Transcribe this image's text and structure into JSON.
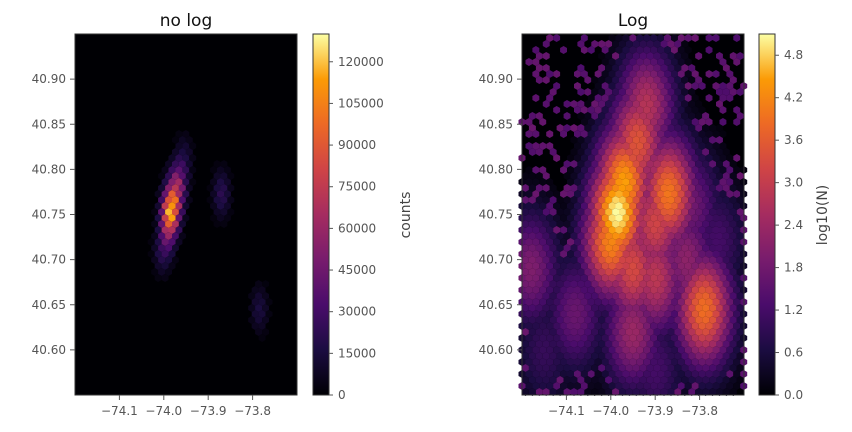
{
  "chart_data": [
    {
      "type": "heatmap",
      "subtype": "hexbin",
      "title": "no log",
      "xlim": [
        -74.2,
        -73.7
      ],
      "ylim": [
        40.55,
        40.95
      ],
      "xticks": [
        -74.1,
        -74.0,
        -73.9,
        -73.8
      ],
      "xtick_labels": [
        "−74.1",
        "−74.0",
        "−73.9",
        "−73.8"
      ],
      "yticks": [
        40.6,
        40.65,
        40.7,
        40.75,
        40.8,
        40.85,
        40.9
      ],
      "ytick_labels": [
        "40.60",
        "40.65",
        "40.70",
        "40.75",
        "40.80",
        "40.85",
        "40.90"
      ],
      "colorbar": {
        "label": "counts",
        "range": [
          0,
          130000
        ],
        "ticks": [
          0,
          15000,
          30000,
          45000,
          60000,
          75000,
          90000,
          105000,
          120000
        ],
        "tick_labels": [
          "0",
          "15000",
          "30000",
          "45000",
          "60000",
          "75000",
          "90000",
          "105000",
          "120000"
        ]
      },
      "colormap": "inferno",
      "points": [
        {
          "x": -73.985,
          "y": 40.752,
          "v": 125000
        },
        {
          "x": -73.978,
          "y": 40.765,
          "v": 105000
        },
        {
          "x": -73.99,
          "y": 40.74,
          "v": 80000
        },
        {
          "x": -73.97,
          "y": 40.78,
          "v": 70000
        },
        {
          "x": -73.995,
          "y": 40.725,
          "v": 45000
        },
        {
          "x": -73.962,
          "y": 40.795,
          "v": 35000
        },
        {
          "x": -74.002,
          "y": 40.712,
          "v": 25000
        },
        {
          "x": -73.955,
          "y": 40.81,
          "v": 18000
        },
        {
          "x": -73.87,
          "y": 40.773,
          "v": 22000
        },
        {
          "x": -73.785,
          "y": 40.645,
          "v": 16000
        }
      ]
    },
    {
      "type": "heatmap",
      "subtype": "hexbin",
      "title": "Log",
      "xlim": [
        -74.2,
        -73.7
      ],
      "ylim": [
        40.55,
        40.95
      ],
      "xticks": [
        -74.1,
        -74.0,
        -73.9,
        -73.8
      ],
      "xtick_labels": [
        "−74.1",
        "−74.0",
        "−73.9",
        "−73.8"
      ],
      "yticks": [
        40.6,
        40.65,
        40.7,
        40.75,
        40.8,
        40.85,
        40.9
      ],
      "ytick_labels": [
        "40.60",
        "40.65",
        "40.70",
        "40.75",
        "40.80",
        "40.85",
        "40.90"
      ],
      "colorbar": {
        "label": "log10(N)",
        "range": [
          0.0,
          5.1
        ],
        "ticks": [
          0.0,
          0.6,
          1.2,
          1.8,
          2.4,
          3.0,
          3.6,
          4.2,
          4.8
        ],
        "tick_labels": [
          "0.0",
          "0.6",
          "1.2",
          "1.8",
          "2.4",
          "3.0",
          "3.6",
          "4.2",
          "4.8"
        ]
      },
      "colormap": "inferno",
      "points": [
        {
          "x": -73.985,
          "y": 40.752,
          "v": 5.1
        },
        {
          "x": -73.97,
          "y": 40.785,
          "v": 4.5
        },
        {
          "x": -74.0,
          "y": 40.72,
          "v": 4.2
        },
        {
          "x": -73.94,
          "y": 40.83,
          "v": 3.5
        },
        {
          "x": -73.92,
          "y": 40.87,
          "v": 2.8
        },
        {
          "x": -73.9,
          "y": 40.74,
          "v": 3.2
        },
        {
          "x": -73.87,
          "y": 40.773,
          "v": 4.0
        },
        {
          "x": -73.95,
          "y": 40.69,
          "v": 3.3
        },
        {
          "x": -73.9,
          "y": 40.68,
          "v": 2.9
        },
        {
          "x": -73.79,
          "y": 40.645,
          "v": 3.9
        },
        {
          "x": -73.95,
          "y": 40.62,
          "v": 2.4
        },
        {
          "x": -73.83,
          "y": 40.7,
          "v": 2.2
        },
        {
          "x": -73.82,
          "y": 40.76,
          "v": 1.8
        },
        {
          "x": -74.08,
          "y": 40.64,
          "v": 1.7
        },
        {
          "x": -74.15,
          "y": 40.6,
          "v": 1.0
        },
        {
          "x": -74.18,
          "y": 40.69,
          "v": 2.0
        },
        {
          "x": -73.76,
          "y": 40.72,
          "v": 1.2
        },
        {
          "x": -73.9,
          "y": 40.58,
          "v": 1.2
        }
      ]
    }
  ]
}
